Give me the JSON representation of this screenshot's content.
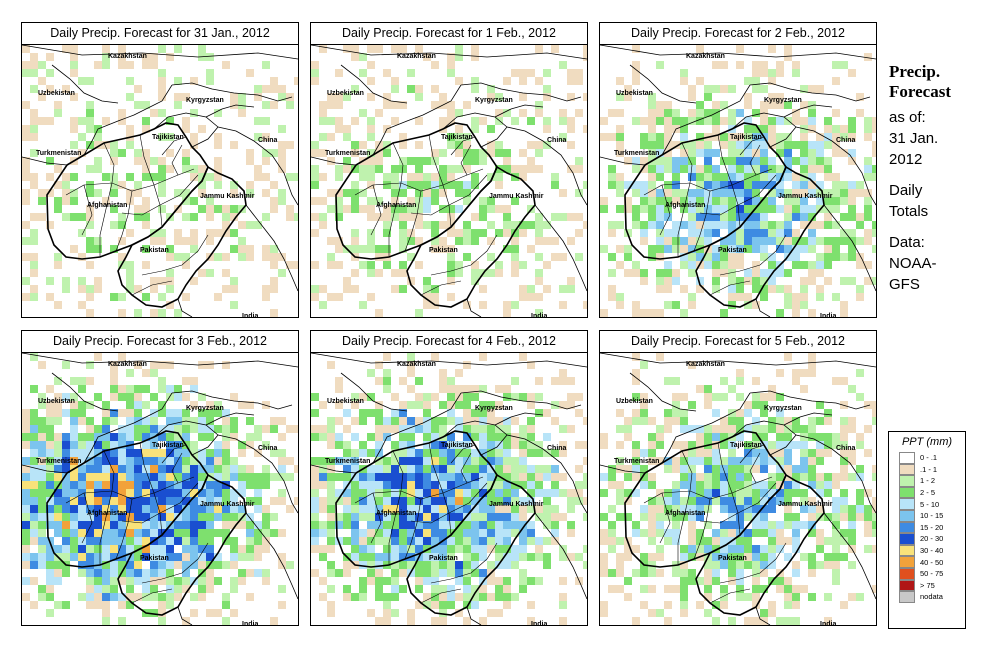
{
  "panels": [
    {
      "title": "Daily Precip. Forecast for  31 Jan., 2012",
      "intensity": 0.15
    },
    {
      "title": "Daily Precip. Forecast for  1 Feb., 2012",
      "intensity": 0.2
    },
    {
      "title": "Daily Precip. Forecast for  2 Feb., 2012",
      "intensity": 0.55
    },
    {
      "title": "Daily Precip. Forecast for  3 Feb., 2012",
      "intensity": 0.9
    },
    {
      "title": "Daily Precip. Forecast for  4 Feb., 2012",
      "intensity": 0.7
    },
    {
      "title": "Daily Precip. Forecast for  5 Feb., 2012",
      "intensity": 0.5
    }
  ],
  "map_labels": {
    "kazakhstan": "Kazakhstan",
    "uzbekistan": "Uzbekistan",
    "kyrgyzstan": "Kyrgyzstan",
    "tajikistan": "Tajikistan",
    "turkmenistan": "Turkmenistan",
    "china": "China",
    "afghanistan": "Afghanistan",
    "jammu_kashmir": "Jammu Kashmir",
    "pakistan": "Pakistan",
    "india": "India"
  },
  "sidebar": {
    "heading_line1": "Precip.",
    "heading_line2": "Forecast",
    "asof_line1": "as of:",
    "asof_line2": "31 Jan.",
    "asof_line3": "2012",
    "totals_line1": "Daily",
    "totals_line2": "Totals",
    "data_line1": "Data:",
    "data_line2": "NOAA-",
    "data_line3": "GFS"
  },
  "legend": {
    "title": "PPT (mm)",
    "items": [
      {
        "label": "0 - .1",
        "color": "#ffffff"
      },
      {
        "label": ".1 - 1",
        "color": "#f0dcc0"
      },
      {
        "label": "1 - 2",
        "color": "#bff2ae"
      },
      {
        "label": "2 - 5",
        "color": "#7ee06e"
      },
      {
        "label": "5 - 10",
        "color": "#b8e4f8"
      },
      {
        "label": "10 - 15",
        "color": "#7cc4ee"
      },
      {
        "label": "15 - 20",
        "color": "#3e8be2"
      },
      {
        "label": "20 - 30",
        "color": "#1a4fd0"
      },
      {
        "label": "30 - 40",
        "color": "#f9e27a"
      },
      {
        "label": "40 - 50",
        "color": "#f2a23a"
      },
      {
        "label": "50 - 75",
        "color": "#e0501e"
      },
      {
        "label": "> 75",
        "color": "#b01616"
      },
      {
        "label": "nodata",
        "color": "#c8c8c8"
      }
    ]
  }
}
